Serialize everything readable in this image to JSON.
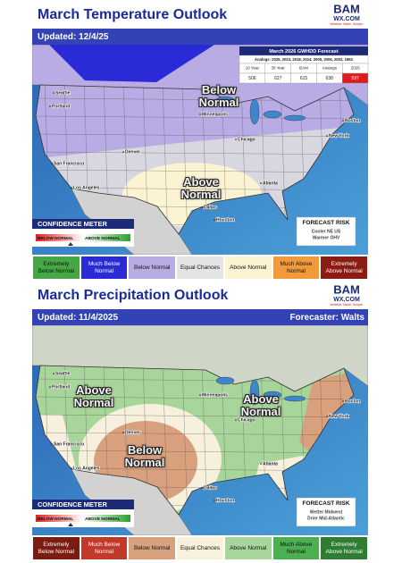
{
  "panels": [
    {
      "title": "March Temperature Outlook",
      "logo": {
        "text": "BAM",
        "domain": "WX.COM",
        "tagline": "Weather. Made. Simple."
      },
      "updated": "Updated: 12/4/25",
      "table": {
        "title": "March 2026 GWHDD Forecast",
        "subtitle": "Analogs: 2025, 2023, 2018, 2014, 2009, 2006, 2002, 1952",
        "headers": [
          "10 Year",
          "30 Year",
          "BAM",
          "Analogs",
          "2025"
        ],
        "values": [
          506,
          627,
          615,
          638,
          597
        ]
      },
      "map_labels": [
        "Below Normal",
        "Above Normal"
      ],
      "cities": [
        "Seattle",
        "Portland",
        "San Francisco",
        "Los Angeles",
        "Denver",
        "Minneapolis",
        "Chicago",
        "Dallas",
        "Houston",
        "Atlanta",
        "New York",
        "Boston"
      ],
      "confidence_meter": {
        "title": "CONFIDENCE METER",
        "low": "BELOW NORMAL",
        "high": "ABOVE NORMAL"
      },
      "forecast_risk": {
        "title": "FORECAST RISK",
        "lines": [
          "Cooler NE US",
          "Warmer OHV"
        ]
      },
      "legend": [
        {
          "label": "Extremely Below Normal",
          "color": "#45a845"
        },
        {
          "label": "Much Below Normal",
          "color": "#2a2ad6"
        },
        {
          "label": "Below Normal",
          "color": "#b9abe4"
        },
        {
          "label": "Equal Chances",
          "color": "#e4e4e4"
        },
        {
          "label": "Above Normal",
          "color": "#fbf3d2"
        },
        {
          "label": "Much Above Normal",
          "color": "#f29a3a"
        },
        {
          "label": "Extremely Above Normal",
          "color": "#8c1c13"
        }
      ]
    },
    {
      "title": "March Precipitation Outlook",
      "logo": {
        "text": "BAM",
        "domain": "WX.COM",
        "tagline": "Weather. Made. Simple."
      },
      "updated": "Updated: 11/4/2025",
      "forecaster": "Forecaster: Walts",
      "map_labels": [
        "Above Normal",
        "Above Normal",
        "Below Normal"
      ],
      "cities": [
        "Seattle",
        "Portland",
        "San Francisco",
        "Los Angeles",
        "Denver",
        "Minneapolis",
        "Chicago",
        "Dallas",
        "Houston",
        "Atlanta",
        "New York",
        "Boston"
      ],
      "confidence_meter": {
        "title": "CONFIDENCE METER",
        "low": "BELOW NORMAL",
        "high": "ABOVE NORMAL"
      },
      "forecast_risk": {
        "title": "FORECAST RISK",
        "lines": [
          "Wetter Midwest",
          "Drier Mid-Atlantic"
        ]
      },
      "legend": [
        {
          "label": "Extremely Below Normal",
          "color": "#7a1c12"
        },
        {
          "label": "Much Below Normal",
          "color": "#c0392b"
        },
        {
          "label": "Below Normal",
          "color": "#d9a07e"
        },
        {
          "label": "Equal Chances",
          "color": "#f8f1dc"
        },
        {
          "label": "Above Normal",
          "color": "#a8d59a"
        },
        {
          "label": "Much Above Normal",
          "color": "#4caf50"
        },
        {
          "label": "Extremely Above Normal",
          "color": "#2e7d32"
        }
      ]
    }
  ]
}
